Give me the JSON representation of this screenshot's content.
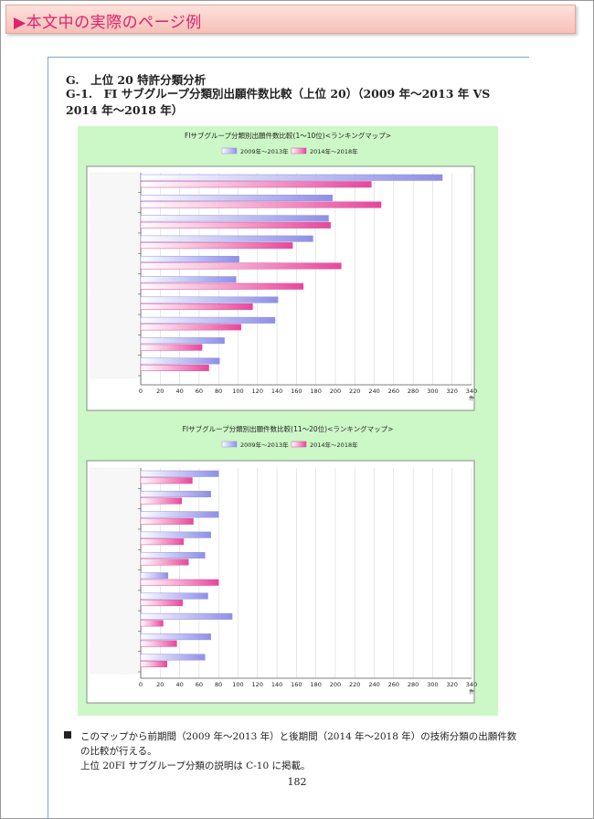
{
  "banner": {
    "text": "▶本文中の実際のページ例"
  },
  "section": {
    "title": "G.　上位 20 特許分類分析",
    "subtitle": "G-1.　FI サブグループ分類別出願件数比較（上位 20）（2009 年～2013 年 VS 2014 年～2018 年）"
  },
  "colors": {
    "period1": "#8f8fe6",
    "period2": "#e6479b",
    "banner_text": "#e0206b",
    "chart_bg": "#ccf7c6"
  },
  "chart_data": [
    {
      "type": "bar",
      "orientation": "horizontal",
      "title": "FIサブグループ分類別出願件数比較(1～10位)<ランキングマップ>",
      "legend": [
        "2009年～2013年",
        "2014年～2018年"
      ],
      "legend_position": "top",
      "xlim": [
        0,
        340
      ],
      "ticks": [
        0,
        20,
        40,
        60,
        80,
        100,
        120,
        140,
        160,
        180,
        200,
        220,
        240,
        260,
        280,
        300,
        320,
        340
      ],
      "xunit": "件",
      "grid": true,
      "series": [
        {
          "name": "2009年～2013年",
          "values": [
            310,
            197,
            193,
            177,
            101,
            98,
            141,
            138,
            86,
            81
          ]
        },
        {
          "name": "2014年～2018年",
          "values": [
            237,
            247,
            195,
            156,
            206,
            167,
            115,
            103,
            63,
            70
          ]
        }
      ]
    },
    {
      "type": "bar",
      "orientation": "horizontal",
      "title": "FIサブグループ分類別出願件数比較(11～20位)<ランキングマップ>",
      "legend": [
        "2009年～2013年",
        "2014年～2018年"
      ],
      "legend_position": "top",
      "xlim": [
        0,
        340
      ],
      "ticks": [
        0,
        20,
        40,
        60,
        80,
        100,
        120,
        140,
        160,
        180,
        200,
        220,
        240,
        260,
        280,
        300,
        320,
        340
      ],
      "xunit": "件",
      "grid": true,
      "series": [
        {
          "name": "2009年～2013年",
          "values": [
            80,
            72,
            80,
            72,
            66,
            28,
            69,
            94,
            72,
            66
          ]
        },
        {
          "name": "2014年～2018年",
          "values": [
            53,
            42,
            54,
            44,
            49,
            80,
            43,
            23,
            37,
            27
          ]
        }
      ]
    }
  ],
  "note": {
    "line1": "このマップから前期間（2009 年～2013 年）と後期間（2014 年～2018 年）の技術分類の出願件数",
    "line2": "の比較が行える。",
    "line3": "上位 20FI サブグループ分類の説明は C-10 に掲載。"
  },
  "page_number": "182"
}
